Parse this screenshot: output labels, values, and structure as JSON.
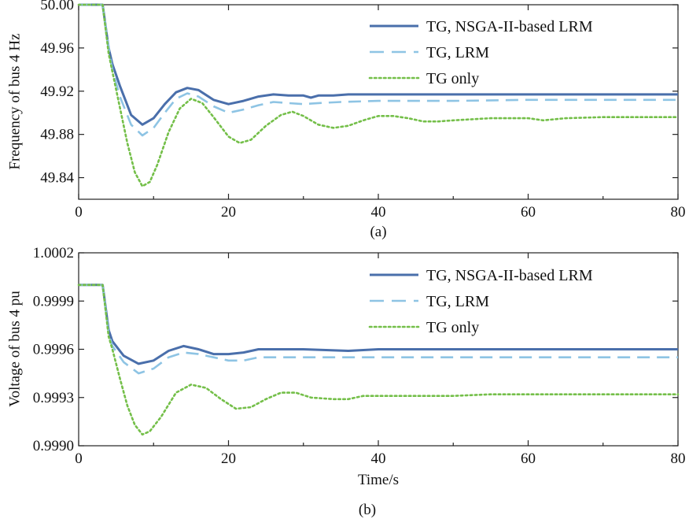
{
  "chart_data": [
    {
      "type": "line",
      "caption": "(a)",
      "xlabel": "",
      "ylabel": "Frequency of bus 4 Hz",
      "xlim": [
        0,
        80
      ],
      "ylim": [
        49.82,
        50.0
      ],
      "xticks": [
        "0",
        "20",
        "40",
        "60",
        "80"
      ],
      "yticks": [
        "50.00",
        "49.96",
        "49.92",
        "49.88",
        "49.84"
      ],
      "grid": false,
      "legend_position": "top-right",
      "series": [
        {
          "name": "TG, NSGA-II-based LRM",
          "color": "#4a6fab",
          "style": "solid",
          "points": [
            [
              0,
              50.0
            ],
            [
              3.2,
              50.0
            ],
            [
              4,
              49.96
            ],
            [
              4.5,
              49.945
            ],
            [
              5.5,
              49.925
            ],
            [
              7,
              49.898
            ],
            [
              8.5,
              49.889
            ],
            [
              10,
              49.895
            ],
            [
              11.5,
              49.908
            ],
            [
              13,
              49.919
            ],
            [
              14.5,
              49.923
            ],
            [
              16,
              49.921
            ],
            [
              18,
              49.912
            ],
            [
              20,
              49.908
            ],
            [
              22,
              49.911
            ],
            [
              24,
              49.915
            ],
            [
              26,
              49.917
            ],
            [
              28,
              49.916
            ],
            [
              30,
              49.916
            ],
            [
              31,
              49.914
            ],
            [
              32,
              49.916
            ],
            [
              34,
              49.916
            ],
            [
              36,
              49.917
            ],
            [
              38,
              49.917
            ],
            [
              40,
              49.917
            ],
            [
              46,
              49.917
            ],
            [
              50,
              49.917
            ],
            [
              60,
              49.917
            ],
            [
              70,
              49.917
            ],
            [
              80,
              49.917
            ]
          ]
        },
        {
          "name": "TG, LRM",
          "color": "#8ec4e4",
          "style": "dashed",
          "points": [
            [
              0,
              50.0
            ],
            [
              3.2,
              50.0
            ],
            [
              4,
              49.96
            ],
            [
              4.5,
              49.94
            ],
            [
              5.5,
              49.915
            ],
            [
              7,
              49.889
            ],
            [
              8.5,
              49.879
            ],
            [
              10,
              49.886
            ],
            [
              11.5,
              49.9
            ],
            [
              13,
              49.913
            ],
            [
              14.5,
              49.918
            ],
            [
              16,
              49.915
            ],
            [
              18,
              49.906
            ],
            [
              20,
              49.9
            ],
            [
              22,
              49.903
            ],
            [
              24,
              49.907
            ],
            [
              26,
              49.91
            ],
            [
              28,
              49.909
            ],
            [
              30,
              49.908
            ],
            [
              32,
              49.909
            ],
            [
              35,
              49.91
            ],
            [
              40,
              49.911
            ],
            [
              50,
              49.911
            ],
            [
              60,
              49.912
            ],
            [
              70,
              49.912
            ],
            [
              80,
              49.912
            ]
          ]
        },
        {
          "name": "TG only",
          "color": "#74bf49",
          "style": "dotted",
          "points": [
            [
              0,
              50.0
            ],
            [
              3.2,
              50.0
            ],
            [
              4,
              49.955
            ],
            [
              4.5,
              49.938
            ],
            [
              5.5,
              49.905
            ],
            [
              6.5,
              49.872
            ],
            [
              7.5,
              49.845
            ],
            [
              8.5,
              49.832
            ],
            [
              9.5,
              49.836
            ],
            [
              10.5,
              49.852
            ],
            [
              12,
              49.882
            ],
            [
              13.5,
              49.904
            ],
            [
              15,
              49.913
            ],
            [
              16.5,
              49.909
            ],
            [
              18,
              49.896
            ],
            [
              20,
              49.878
            ],
            [
              21.5,
              49.872
            ],
            [
              23,
              49.875
            ],
            [
              25,
              49.888
            ],
            [
              27,
              49.898
            ],
            [
              28.5,
              49.901
            ],
            [
              30,
              49.897
            ],
            [
              32,
              49.889
            ],
            [
              34,
              49.886
            ],
            [
              36,
              49.888
            ],
            [
              38,
              49.893
            ],
            [
              40,
              49.897
            ],
            [
              42,
              49.897
            ],
            [
              44,
              49.895
            ],
            [
              46,
              49.892
            ],
            [
              48,
              49.892
            ],
            [
              50,
              49.893
            ],
            [
              55,
              49.895
            ],
            [
              60,
              49.895
            ],
            [
              62,
              49.893
            ],
            [
              65,
              49.895
            ],
            [
              70,
              49.896
            ],
            [
              80,
              49.896
            ]
          ]
        }
      ]
    },
    {
      "type": "line",
      "caption": "(b)",
      "xlabel": "Time/s",
      "ylabel": "Voltage of bus 4 pu",
      "xlim": [
        0,
        80
      ],
      "ylim": [
        0.999,
        1.0002
      ],
      "xticks": [
        "0",
        "20",
        "40",
        "60",
        "80"
      ],
      "yticks": [
        "1.0002",
        "0.9999",
        "0.9996",
        "0.9993",
        "0.9990"
      ],
      "grid": false,
      "legend_position": "top-right",
      "series": [
        {
          "name": "TG, NSGA-II-based LRM",
          "color": "#4a6fab",
          "style": "solid",
          "points": [
            [
              0,
              1.0
            ],
            [
              3.2,
              1.0
            ],
            [
              4,
              0.99972
            ],
            [
              4.5,
              0.99965
            ],
            [
              6,
              0.99956
            ],
            [
              8,
              0.99951
            ],
            [
              10,
              0.99953
            ],
            [
              12,
              0.99959
            ],
            [
              14,
              0.99962
            ],
            [
              16,
              0.9996
            ],
            [
              18,
              0.99957
            ],
            [
              20,
              0.99957
            ],
            [
              22,
              0.99958
            ],
            [
              24,
              0.9996
            ],
            [
              26,
              0.9996
            ],
            [
              30,
              0.9996
            ],
            [
              36,
              0.99959
            ],
            [
              40,
              0.9996
            ],
            [
              50,
              0.9996
            ],
            [
              60,
              0.9996
            ],
            [
              70,
              0.9996
            ],
            [
              80,
              0.9996
            ]
          ]
        },
        {
          "name": "TG, LRM",
          "color": "#8ec4e4",
          "style": "dashed",
          "points": [
            [
              0,
              1.0
            ],
            [
              3.2,
              1.0
            ],
            [
              4,
              0.9997
            ],
            [
              4.5,
              0.99962
            ],
            [
              6,
              0.99952
            ],
            [
              8,
              0.99945
            ],
            [
              10,
              0.99948
            ],
            [
              12,
              0.99955
            ],
            [
              14,
              0.99958
            ],
            [
              16,
              0.99957
            ],
            [
              18,
              0.99955
            ],
            [
              20,
              0.99953
            ],
            [
              22,
              0.99953
            ],
            [
              24,
              0.99955
            ],
            [
              28,
              0.99955
            ],
            [
              30,
              0.99955
            ],
            [
              40,
              0.99955
            ],
            [
              60,
              0.99955
            ],
            [
              80,
              0.99955
            ]
          ]
        },
        {
          "name": "TG only",
          "color": "#74bf49",
          "style": "dotted",
          "points": [
            [
              0,
              1.0
            ],
            [
              3.2,
              1.0
            ],
            [
              4,
              0.99968
            ],
            [
              4.5,
              0.9996
            ],
            [
              5.5,
              0.99942
            ],
            [
              6.5,
              0.99925
            ],
            [
              7.5,
              0.99913
            ],
            [
              8.5,
              0.99907
            ],
            [
              9.5,
              0.99909
            ],
            [
              11,
              0.99918
            ],
            [
              13,
              0.99933
            ],
            [
              15,
              0.99938
            ],
            [
              17,
              0.99936
            ],
            [
              19,
              0.99929
            ],
            [
              21,
              0.99923
            ],
            [
              23,
              0.99924
            ],
            [
              25,
              0.99929
            ],
            [
              27,
              0.99933
            ],
            [
              29,
              0.99933
            ],
            [
              31,
              0.9993
            ],
            [
              34,
              0.99929
            ],
            [
              36,
              0.99929
            ],
            [
              38,
              0.99931
            ],
            [
              40,
              0.99931
            ],
            [
              45,
              0.99931
            ],
            [
              50,
              0.99931
            ],
            [
              55,
              0.99932
            ],
            [
              60,
              0.99932
            ],
            [
              80,
              0.99932
            ]
          ]
        }
      ]
    }
  ]
}
